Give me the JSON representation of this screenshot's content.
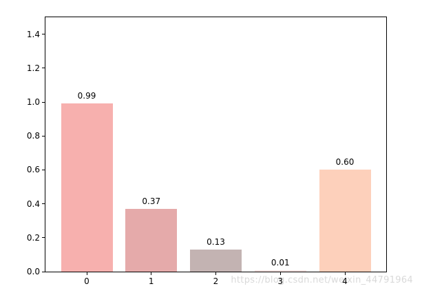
{
  "figure": {
    "background": "#ffffff",
    "spine_color": "#000000",
    "tick_color": "#000000"
  },
  "watermark": {
    "text": "https://blog.csdn.net/weixin_44791964",
    "color": "#d9d9d9"
  },
  "chart_data": {
    "type": "bar",
    "title": "",
    "xlabel": "",
    "ylabel": "",
    "categories": [
      "0",
      "1",
      "2",
      "3",
      "4"
    ],
    "values": [
      0.99,
      0.37,
      0.13,
      0.01,
      0.6
    ],
    "value_labels": [
      "0.99",
      "0.37",
      "0.13",
      "0.01",
      "0.60"
    ],
    "bar_colors": [
      "#f7b0ae",
      "#e5aaaa",
      "#c3b3b2",
      "#fae2e0",
      "#fdd0bb"
    ],
    "ylim": [
      0,
      1.5
    ],
    "yticks": [
      "0.0",
      "0.2",
      "0.4",
      "0.6",
      "0.8",
      "1.0",
      "1.2",
      "1.4"
    ],
    "grid": false,
    "legend": null,
    "bar_width_fraction": 0.8
  }
}
